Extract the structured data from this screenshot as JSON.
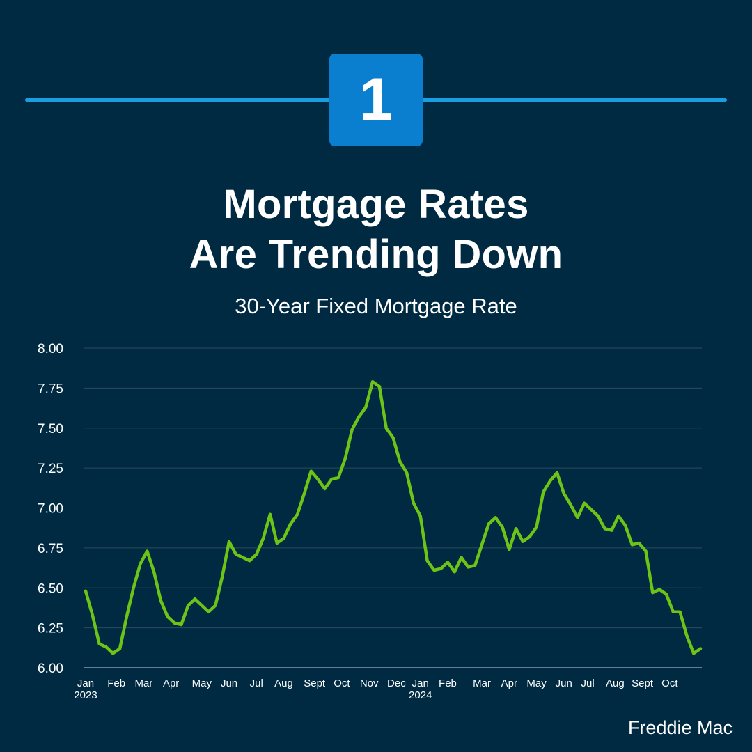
{
  "badge": {
    "number": "1"
  },
  "header": {
    "title_line1": "Mortgage Rates",
    "title_line2": "Are Trending Down",
    "subtitle": "30-Year Fixed Mortgage Rate"
  },
  "source": "Freddie Mac",
  "colors": {
    "background": "#002a42",
    "accent_line": "#1a9ee2",
    "badge": "#0a7ecf",
    "series": "#6cc417",
    "grid": "#2e4b5e"
  },
  "chart_data": {
    "type": "line",
    "title": "30-Year Fixed Mortgage Rate",
    "xlabel": "",
    "ylabel": "",
    "ylim": [
      6.0,
      8.0
    ],
    "yticks": [
      "6.00",
      "6.25",
      "6.50",
      "6.75",
      "7.00",
      "7.25",
      "7.50",
      "7.75",
      "8.00"
    ],
    "grid": true,
    "month_labels": [
      {
        "label": "Jan",
        "year": "2023",
        "week": 0
      },
      {
        "label": "Feb",
        "week": 4.5
      },
      {
        "label": "Mar",
        "week": 8.5
      },
      {
        "label": "Apr",
        "week": 12.5
      },
      {
        "label": "May",
        "week": 17
      },
      {
        "label": "Jun",
        "week": 21
      },
      {
        "label": "Jul",
        "week": 25
      },
      {
        "label": "Aug",
        "week": 29
      },
      {
        "label": "Sept",
        "week": 33.5
      },
      {
        "label": "Oct",
        "week": 37.5
      },
      {
        "label": "Nov",
        "week": 41.5
      },
      {
        "label": "Dec",
        "week": 45.5
      },
      {
        "label": "Jan",
        "year": "2024",
        "week": 49
      },
      {
        "label": "Feb",
        "week": 53
      },
      {
        "label": "Mar",
        "week": 58
      },
      {
        "label": "Apr",
        "week": 62
      },
      {
        "label": "May",
        "week": 66
      },
      {
        "label": "Jun",
        "week": 70
      },
      {
        "label": "Jul",
        "week": 73.5
      },
      {
        "label": "Aug",
        "week": 77.5
      },
      {
        "label": "Sept",
        "week": 81.5
      },
      {
        "label": "Oct",
        "week": 85.5
      }
    ],
    "series": [
      {
        "values": [
          6.48,
          6.33,
          6.15,
          6.13,
          6.09,
          6.12,
          6.32,
          6.5,
          6.65,
          6.73,
          6.6,
          6.42,
          6.32,
          6.28,
          6.27,
          6.39,
          6.43,
          6.39,
          6.35,
          6.39,
          6.57,
          6.79,
          6.71,
          6.69,
          6.67,
          6.71,
          6.81,
          6.96,
          6.78,
          6.81,
          6.9,
          6.96,
          7.09,
          7.23,
          7.18,
          7.12,
          7.18,
          7.19,
          7.31,
          7.49,
          7.57,
          7.63,
          7.79,
          7.76,
          7.5,
          7.44,
          7.29,
          7.22,
          7.03,
          6.95,
          6.67,
          6.61,
          6.62,
          6.66,
          6.6,
          6.69,
          6.63,
          6.64,
          6.77,
          6.9,
          6.94,
          6.88,
          6.74,
          6.87,
          6.79,
          6.82,
          6.88,
          7.1,
          7.17,
          7.22,
          7.09,
          7.02,
          6.94,
          7.03,
          6.99,
          6.95,
          6.87,
          6.86,
          6.95,
          6.89,
          6.77,
          6.78,
          6.73,
          6.47,
          6.49,
          6.46,
          6.35,
          6.35,
          6.2,
          6.09,
          6.12
        ]
      }
    ]
  }
}
